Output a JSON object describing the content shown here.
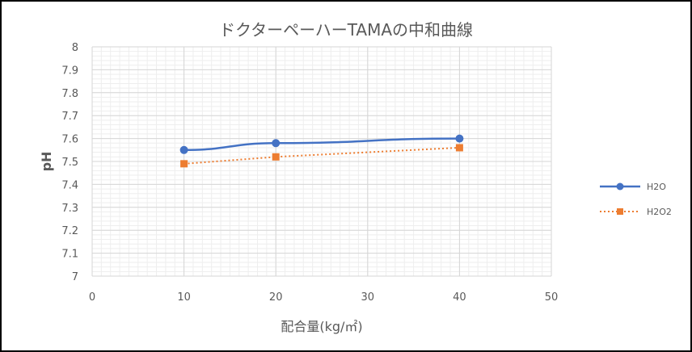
{
  "chart_data": {
    "type": "scatter",
    "title": "ドクターペーハーTAMAの中和曲線",
    "xlabel": "配合量(kg/㎡)",
    "ylabel": "pH",
    "xlim": [
      0,
      50
    ],
    "ylim": [
      7,
      8
    ],
    "x_ticks": [
      "0",
      "10",
      "20",
      "30",
      "40",
      "50"
    ],
    "y_ticks": [
      "7",
      "7.1",
      "7.2",
      "7.3",
      "7.4",
      "7.5",
      "7.6",
      "7.7",
      "7.8",
      "7.9",
      "8"
    ],
    "grid": true,
    "legend_position": "right",
    "series": [
      {
        "name": "H2O",
        "color": "#4472C4",
        "line": "solid",
        "marker": "circle",
        "x": [
          10,
          20,
          40
        ],
        "y": [
          7.55,
          7.58,
          7.6
        ]
      },
      {
        "name": "H2O2",
        "color": "#ED7D31",
        "line": "dotted",
        "marker": "square",
        "x": [
          10,
          20,
          40
        ],
        "y": [
          7.49,
          7.52,
          7.56
        ]
      }
    ]
  }
}
